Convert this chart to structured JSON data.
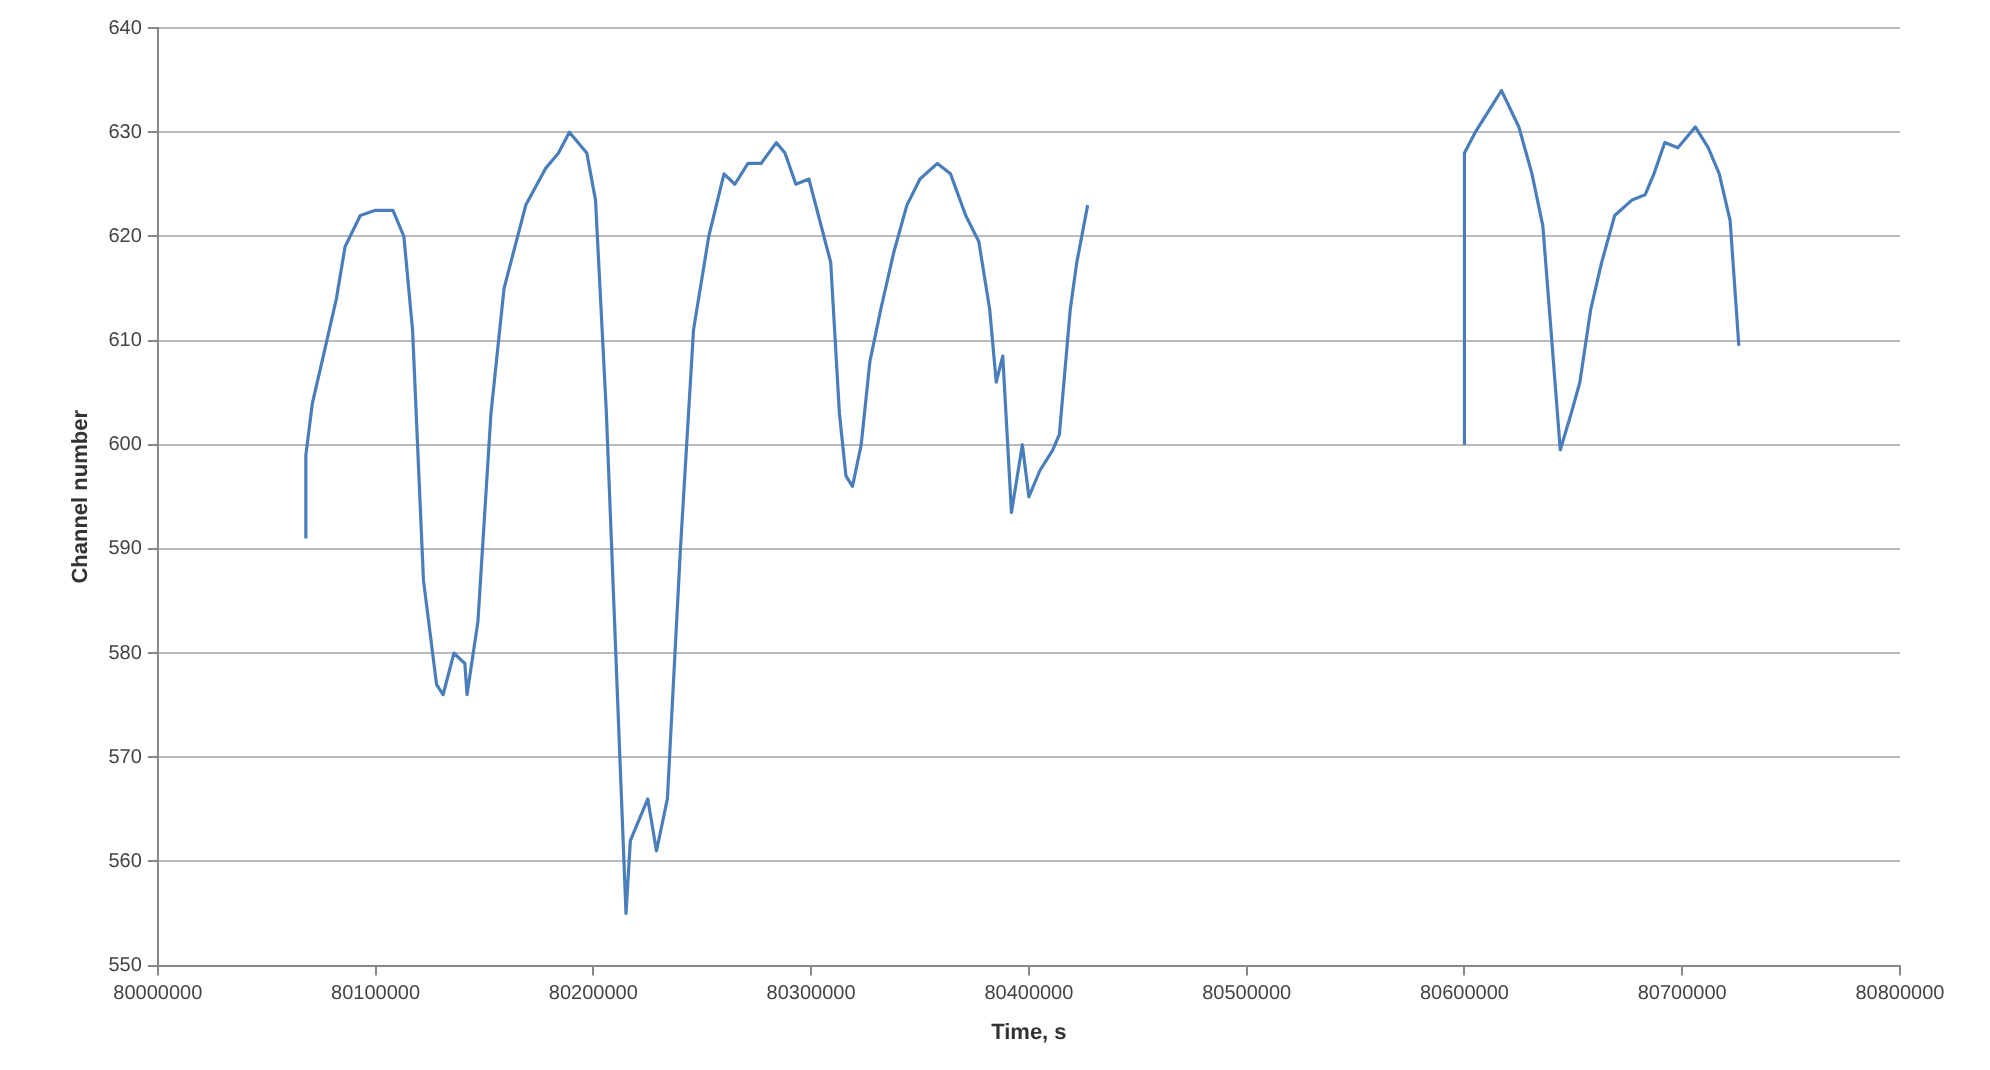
{
  "chart_data": {
    "type": "line",
    "xlabel": "Time, s",
    "ylabel": "Channel number",
    "x": [
      80068000,
      80068000,
      80071000,
      80076000,
      80082000,
      80086000,
      80093000,
      80100000,
      80108000,
      80113000,
      80117000,
      80122000,
      80128000,
      80131000,
      80136000,
      80141000,
      80142000,
      80147000,
      80153000,
      80159000,
      80169000,
      80178000,
      80184000,
      80189000,
      80197000,
      80201000,
      80206000,
      80212000,
      80215000,
      80217000,
      80225000,
      80229000,
      80234000,
      80240000,
      80246000,
      80253000,
      80260000,
      80265000,
      80271000,
      80277000,
      80284000,
      80288000,
      80293000,
      80299000,
      80304000,
      80309000,
      80313000,
      80316000,
      80319000,
      80323000,
      80327000,
      80332000,
      80338000,
      80344000,
      80350000,
      80358000,
      80364000,
      80371000,
      80377000,
      80382000,
      80385000,
      80388000,
      80392000,
      80397000,
      80400000,
      80405000,
      80411000,
      80414000,
      80419000,
      80422000,
      80427000,
      80500000,
      80600000,
      80600000,
      80605000,
      80611000,
      80617000,
      80625000,
      80631000,
      80636000,
      80639000,
      80644000,
      80649000,
      80653000,
      80658000,
      80663000,
      80669000,
      80677000,
      80683000,
      80687000,
      80692000,
      80698000,
      80706000,
      80712000,
      80717000,
      80722000,
      80726000
    ],
    "series": [
      {
        "color": "#4a7ebb",
        "values": [
          591,
          599,
          604,
          608.5,
          614,
          619,
          622,
          622.5,
          622.5,
          620,
          611,
          587,
          577,
          576,
          580,
          579,
          576,
          583,
          603,
          615,
          623,
          626.5,
          628,
          630,
          628,
          623.5,
          603,
          571,
          555,
          562,
          566,
          561,
          566,
          590,
          611,
          620,
          626,
          625,
          627,
          627,
          629,
          628,
          625,
          625.5,
          621.5,
          617.5,
          603,
          597,
          596,
          600,
          608,
          613,
          618.5,
          623,
          625.5,
          627,
          626,
          622,
          619.5,
          613,
          606,
          608.5,
          593.5,
          600,
          595,
          597.5,
          599.5,
          601,
          613,
          617.5,
          623,
          null,
          600,
          628,
          630,
          632,
          634,
          630.5,
          626,
          621,
          613,
          599.5,
          603,
          606,
          613,
          617.5,
          622,
          623.5,
          624,
          626,
          629,
          628.5,
          630.5,
          628.5,
          626,
          621.5,
          609.5
        ]
      }
    ],
    "xlim": [
      80000000,
      80800000
    ],
    "xticks": [
      80000000,
      80100000,
      80200000,
      80300000,
      80400000,
      80500000,
      80600000,
      80700000,
      80800000
    ],
    "ylim": [
      550,
      640
    ],
    "yticks": [
      550,
      560,
      570,
      580,
      590,
      600,
      610,
      620,
      630,
      640
    ],
    "grid": "y",
    "legend": false,
    "marker": "none",
    "line_style": "solid"
  }
}
